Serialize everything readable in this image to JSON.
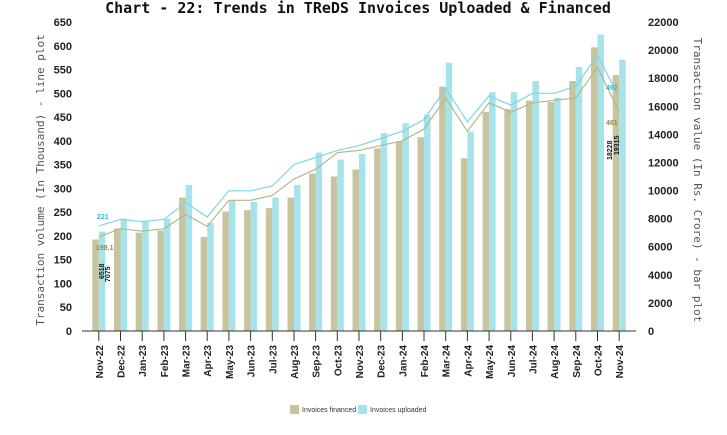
{
  "chart_data": {
    "type": "bar",
    "title": "Chart - 22: Trends in TReDS Invoices Uploaded & Financed",
    "categories": [
      "Nov-22",
      "Dec-22",
      "Jan-23",
      "Feb-23",
      "Mar-23",
      "Apr-23",
      "May-23",
      "Jun-23",
      "Jul-23",
      "Aug-23",
      "Sep-23",
      "Oct-23",
      "Nov-23",
      "Dec-23",
      "Jan-24",
      "Feb-24",
      "Mar-24",
      "Apr-24",
      "May-24",
      "Jun-24",
      "Jul-24",
      "Aug-24",
      "Sep-24",
      "Oct-24",
      "Nov-24"
    ],
    "y_left": {
      "label": "Transaction volume (In Thousand) - line plot",
      "min": 0,
      "max": 650,
      "step": 50
    },
    "y_right": {
      "label": "Transaction value (In Rs. Crore) - bar plot",
      "min": 0,
      "max": 22000,
      "step": 2000
    },
    "bar_series": [
      {
        "name": "Invoices financed",
        "color": "#c8c49e",
        "values": [
          6518,
          7300,
          7000,
          7150,
          9500,
          6700,
          8500,
          8600,
          8750,
          9500,
          11200,
          11000,
          11500,
          13000,
          13500,
          13800,
          17400,
          12300,
          15600,
          15800,
          16400,
          16300,
          17800,
          20200,
          18228
        ]
      },
      {
        "name": "Invoices uploaded",
        "color": "#a6e3ea",
        "values": [
          7075,
          8000,
          7800,
          8000,
          10400,
          7700,
          9300,
          9200,
          9500,
          10400,
          12700,
          12200,
          12600,
          14100,
          14800,
          15400,
          19100,
          14200,
          17000,
          17000,
          17800,
          16600,
          18800,
          21100,
          19315
        ]
      }
    ],
    "line_series": [
      {
        "name": "Invoices financed",
        "color": "#b5b78a",
        "values": [
          198.1,
          215,
          210,
          215,
          245,
          220,
          275,
          275,
          285,
          320,
          340,
          375,
          380,
          390,
          400,
          425,
          490,
          420,
          480,
          460,
          480,
          485,
          490,
          555,
          461
        ]
      },
      {
        "name": "Invoices uploaded",
        "color": "#7fd6e4",
        "values": [
          221,
          235,
          230,
          235,
          270,
          240,
          295,
          295,
          305,
          350,
          365,
          380,
          390,
          405,
          420,
          445,
          510,
          440,
          495,
          475,
          500,
          500,
          515,
          580,
          492
        ]
      }
    ],
    "annotations": {
      "start_line_uploaded": "221",
      "start_line_financed": "198.1",
      "start_bar_financed": "6518",
      "start_bar_uploaded": "7075",
      "end_line_uploaded": "492",
      "end_line_financed": "461",
      "end_bar_financed": "18228",
      "end_bar_uploaded": "19315"
    },
    "legend_position": "bottom",
    "grid": false
  }
}
